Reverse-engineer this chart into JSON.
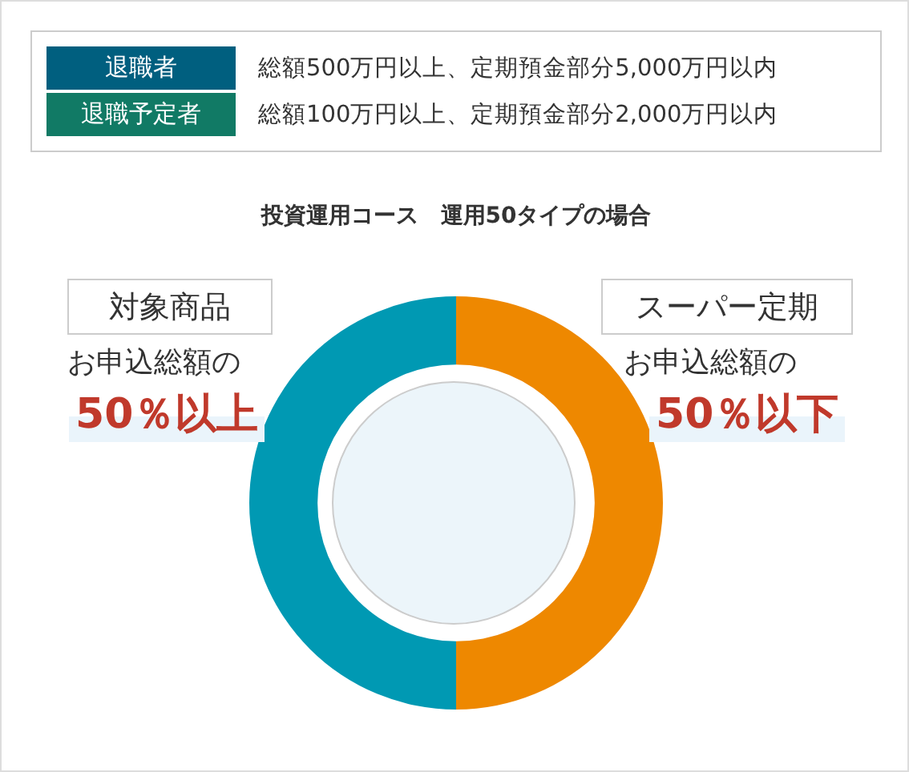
{
  "chart_data": {
    "type": "donut",
    "title": "投資運用コース　運用50タイプの場合",
    "categories": [
      "対象商品",
      "スーパー定期"
    ],
    "values": [
      50,
      50
    ],
    "colors": [
      "#0099b3",
      "#ee8800"
    ],
    "value_labels": [
      "50％以上",
      "50％以下"
    ],
    "annotations": [
      "退職者",
      "総額500万円以上、定期預金部分5,000万円以内",
      "退職予定者",
      "総額100万円以上、定期預金部分2,000万円以内",
      "お申込総額の",
      "お申込総額の"
    ],
    "legend": false
  }
}
